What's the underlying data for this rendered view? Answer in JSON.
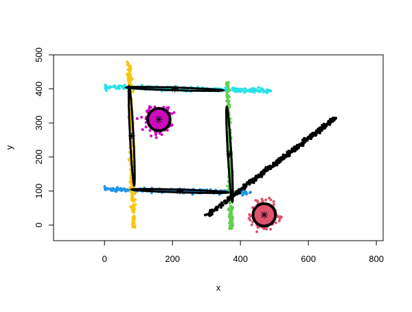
{
  "chart_data": {
    "type": "scatter",
    "title": "",
    "xlabel": "x",
    "ylabel": "y",
    "xlim": [
      -150,
      820
    ],
    "ylim": [
      -46,
      500
    ],
    "xticks": [
      0,
      200,
      400,
      600,
      800
    ],
    "yticks": [
      0,
      100,
      200,
      300,
      400,
      500
    ],
    "grid": false,
    "legend": "none",
    "clusters": [
      {
        "shape": "band",
        "color": "#28E2E5",
        "from": [
          0,
          405
        ],
        "to": [
          490,
          395
        ],
        "spread": 3,
        "n": 260
      },
      {
        "shape": "band",
        "color": "#2297E6",
        "from": [
          0,
          105
        ],
        "to": [
          430,
          95
        ],
        "spread": 3,
        "n": 260
      },
      {
        "shape": "band",
        "color": "#F5C710",
        "from": [
          72,
          480
        ],
        "to": [
          86,
          -8
        ],
        "spread": 3,
        "n": 260
      },
      {
        "shape": "band",
        "color": "#61D04F",
        "from": [
          362,
          420
        ],
        "to": [
          374,
          -12
        ],
        "spread": 3,
        "n": 260
      },
      {
        "shape": "blob",
        "color": "#CD0BBC",
        "center": [
          160,
          310
        ],
        "sd": 17,
        "n": 300
      },
      {
        "shape": "blob",
        "color": "#DF536B",
        "center": [
          470,
          30
        ],
        "sd": 17,
        "n": 300
      },
      {
        "shape": "band",
        "color": "#000000",
        "from": [
          290,
          20
        ],
        "to": [
          680,
          315
        ],
        "spread": 3,
        "n": 500
      }
    ],
    "ellipses": [
      {
        "center": [
          207,
          400
        ],
        "half_length": 142,
        "half_width": 4,
        "direction": [
          1,
          -0.03
        ],
        "filled": false
      },
      {
        "center": [
          222,
          100
        ],
        "half_length": 142,
        "half_width": 4,
        "direction": [
          1,
          -0.03
        ],
        "filled": false
      },
      {
        "center": [
          80,
          262
        ],
        "half_length": 146,
        "half_width": 5,
        "direction": [
          -0.05,
          1
        ],
        "filled": false
      },
      {
        "center": [
          368,
          208
        ],
        "half_length": 140,
        "half_width": 5,
        "direction": [
          -0.06,
          1
        ],
        "filled": false
      },
      {
        "center": [
          160,
          310
        ],
        "radius": 33,
        "filled": true,
        "fill": "#CD0BBC"
      },
      {
        "center": [
          470,
          30
        ],
        "radius": 33,
        "filled": true,
        "fill": "#DF536B"
      }
    ],
    "centers": [
      [
        160,
        310
      ],
      [
        470,
        30
      ],
      [
        207,
        400
      ],
      [
        222,
        100
      ],
      [
        80,
        262
      ],
      [
        368,
        208
      ]
    ]
  }
}
